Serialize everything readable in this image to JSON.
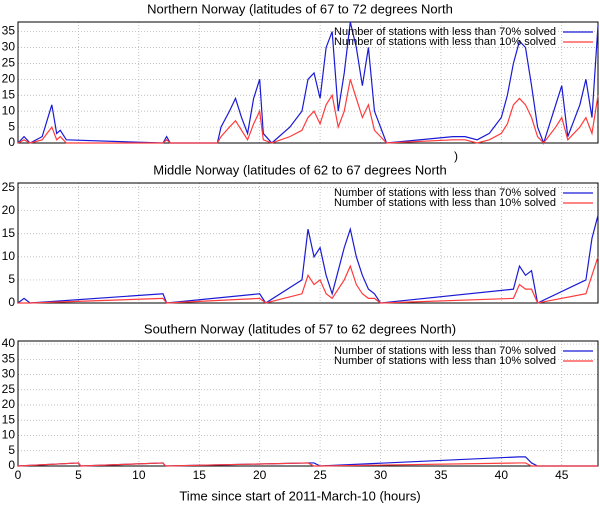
{
  "chart_data": [
    {
      "type": "line",
      "title": "Northern Norway (latitudes of 67 to 72 degrees North",
      "annotation": ")",
      "x": [
        0,
        0.5,
        1,
        2,
        2.8,
        3.2,
        3.5,
        4,
        12,
        12.3,
        12.6,
        16.5,
        16.8,
        17.5,
        18,
        18.5,
        19,
        19.5,
        20,
        20.3,
        21,
        22.5,
        23.5,
        24,
        24.5,
        25,
        25.5,
        26,
        26.5,
        27,
        27.5,
        28,
        28.5,
        29,
        29.5,
        30,
        30.5,
        36,
        37,
        38,
        39,
        40,
        40.5,
        41,
        41.5,
        42,
        42.5,
        43,
        43.5,
        44.5,
        45,
        45.5,
        46.5,
        47,
        47.5,
        48
      ],
      "series": [
        {
          "name": "Number of stations with less than 70% solved",
          "color": "#1a1ad6",
          "values": [
            0,
            2,
            0,
            2,
            12,
            3,
            4,
            1,
            0,
            2,
            0,
            0,
            5,
            10,
            14,
            8,
            3,
            14,
            20,
            3,
            0,
            5,
            10,
            20,
            22,
            14,
            30,
            35,
            10,
            22,
            38,
            30,
            18,
            30,
            10,
            5,
            0,
            2,
            2,
            1,
            3,
            8,
            15,
            25,
            32,
            30,
            18,
            5,
            0,
            12,
            18,
            2,
            12,
            20,
            8,
            37
          ]
        },
        {
          "name": "Number of stations with less than 10% solved",
          "color": "#ff3b3b",
          "values": [
            0,
            1,
            0,
            1,
            5,
            1,
            2,
            0,
            0,
            1,
            0,
            0,
            2,
            5,
            7,
            4,
            1,
            6,
            10,
            1,
            0,
            2,
            4,
            8,
            10,
            6,
            12,
            15,
            5,
            10,
            20,
            14,
            8,
            12,
            4,
            2,
            0,
            1,
            1,
            0,
            1,
            3,
            6,
            12,
            14,
            12,
            8,
            2,
            0,
            5,
            8,
            1,
            5,
            8,
            3,
            15
          ]
        }
      ],
      "xlim": [
        0,
        48
      ],
      "xticks": [
        0,
        5,
        10,
        15,
        20,
        25,
        30,
        35,
        40,
        45
      ],
      "ylim": [
        0,
        38
      ],
      "yticks": [
        0,
        5,
        10,
        15,
        20,
        25,
        30,
        35
      ],
      "grid": true,
      "legend": "top-right"
    },
    {
      "type": "line",
      "title": "Middle Norway (latitudes of 62 to 67 degrees North",
      "x": [
        0,
        0.5,
        1,
        12,
        12.3,
        20,
        20.5,
        23.5,
        24,
        24.5,
        25,
        25.5,
        26,
        27,
        27.5,
        28,
        28.5,
        29,
        29.5,
        30,
        41,
        41.5,
        42,
        42.5,
        43,
        47,
        47.5,
        48
      ],
      "series": [
        {
          "name": "Number of stations with less than 70% solved",
          "color": "#1a1ad6",
          "values": [
            0,
            1,
            0,
            2,
            0,
            2,
            0,
            5,
            16,
            10,
            12,
            6,
            2,
            12,
            16,
            10,
            6,
            3,
            2,
            0,
            3,
            8,
            6,
            7,
            0,
            5,
            14,
            19
          ]
        },
        {
          "name": "Number of stations with less than 10% solved",
          "color": "#ff3b3b",
          "values": [
            0,
            0,
            0,
            1,
            0,
            1,
            0,
            2,
            6,
            4,
            5,
            2,
            1,
            5,
            8,
            4,
            2,
            1,
            1,
            0,
            1,
            4,
            3,
            3,
            0,
            2,
            6,
            10
          ]
        }
      ],
      "xlim": [
        0,
        48
      ],
      "xticks": [
        0,
        5,
        10,
        15,
        20,
        25,
        30,
        35,
        40,
        45
      ],
      "ylim": [
        0,
        26
      ],
      "yticks": [
        0,
        5,
        10,
        15,
        20,
        25
      ],
      "grid": true,
      "legend": "top-right"
    },
    {
      "type": "line",
      "title": "Southern Norway (latitudes of 57 to 62 degrees North)",
      "xlabel": "Time since start of 2011-March-10 (hours)",
      "x": [
        0,
        5,
        5.2,
        12,
        12.2,
        24,
        24.5,
        25,
        41.5,
        42,
        42.5,
        43,
        48
      ],
      "series": [
        {
          "name": "Number of stations with less than 70% solved",
          "color": "#1a1ad6",
          "values": [
            0,
            1,
            0,
            1,
            0,
            1,
            1,
            0,
            3,
            3,
            1,
            0,
            0
          ]
        },
        {
          "name": "Number of stations with less than 10% solved",
          "color": "#ff3b3b",
          "values": [
            0,
            1,
            0,
            1,
            0,
            1,
            0,
            0,
            1,
            1,
            0,
            0,
            0
          ]
        }
      ],
      "xlim": [
        0,
        48
      ],
      "xticks": [
        0,
        5,
        10,
        15,
        20,
        25,
        30,
        35,
        40,
        45
      ],
      "ylim": [
        0,
        41
      ],
      "yticks": [
        0,
        5,
        10,
        15,
        20,
        25,
        30,
        35,
        40
      ],
      "grid": true,
      "legend": "top-right"
    }
  ]
}
